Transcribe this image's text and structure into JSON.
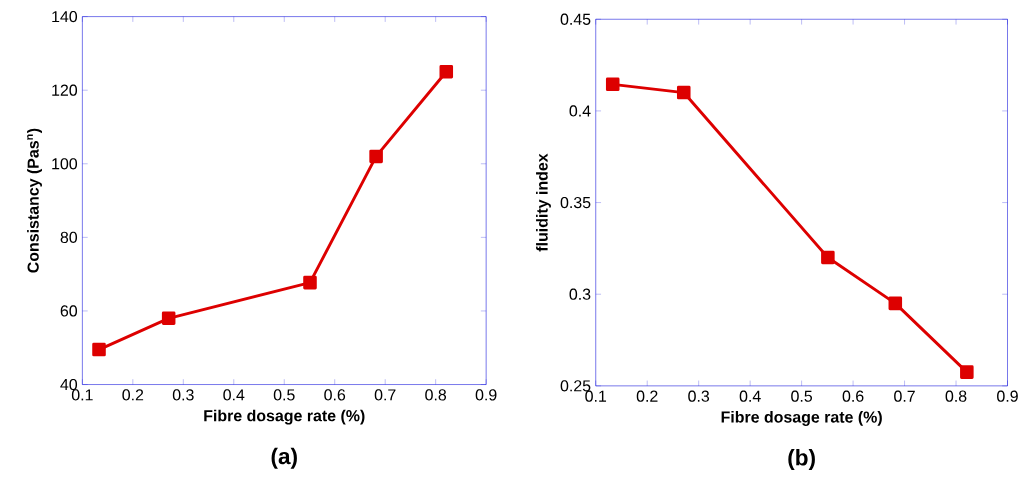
{
  "chart_data": [
    {
      "type": "line",
      "title": "(a)",
      "xlabel": "Fibre dosage rate (%)",
      "ylabel": "Consistancy (Pas$^{n}$)",
      "x": [
        0.133,
        0.271,
        0.551,
        0.682,
        0.821
      ],
      "series": [
        {
          "color": "#dd0000",
          "values": [
            49.5,
            58,
            67.7,
            102,
            125
          ]
        }
      ],
      "xlim": [
        0.1,
        0.9
      ],
      "xticks": [
        0.1,
        0.2,
        0.3,
        0.4,
        0.5,
        0.6,
        0.7,
        0.8,
        0.9
      ],
      "ylim": [
        40,
        140
      ],
      "yticks": [
        40,
        60,
        80,
        100,
        120,
        140
      ],
      "marker": "square",
      "line_style": "solid"
    },
    {
      "type": "line",
      "title": "(b)",
      "xlabel": "Fibre dosage rate (%)",
      "ylabel": "fluidity index",
      "x": [
        0.133,
        0.271,
        0.551,
        0.682,
        0.821
      ],
      "series": [
        {
          "color": "#dd0000",
          "values": [
            0.4145,
            0.41,
            0.32,
            0.295,
            0.2575
          ]
        }
      ],
      "xlim": [
        0.1,
        0.9
      ],
      "xticks": [
        0.1,
        0.2,
        0.3,
        0.4,
        0.5,
        0.6,
        0.7,
        0.8,
        0.9
      ],
      "ylim": [
        0.25,
        0.45
      ],
      "yticks": [
        0.25,
        0.3,
        0.35,
        0.4,
        0.45
      ],
      "marker": "square",
      "line_style": "solid"
    }
  ]
}
